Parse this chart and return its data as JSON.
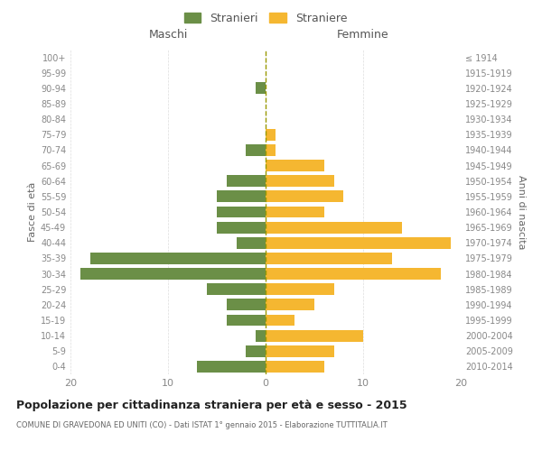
{
  "age_groups": [
    "0-4",
    "5-9",
    "10-14",
    "15-19",
    "20-24",
    "25-29",
    "30-34",
    "35-39",
    "40-44",
    "45-49",
    "50-54",
    "55-59",
    "60-64",
    "65-69",
    "70-74",
    "75-79",
    "80-84",
    "85-89",
    "90-94",
    "95-99",
    "100+"
  ],
  "birth_years": [
    "2010-2014",
    "2005-2009",
    "2000-2004",
    "1995-1999",
    "1990-1994",
    "1985-1989",
    "1980-1984",
    "1975-1979",
    "1970-1974",
    "1965-1969",
    "1960-1964",
    "1955-1959",
    "1950-1954",
    "1945-1949",
    "1940-1944",
    "1935-1939",
    "1930-1934",
    "1925-1929",
    "1920-1924",
    "1915-1919",
    "≤ 1914"
  ],
  "maschi": [
    7,
    2,
    1,
    4,
    4,
    6,
    19,
    18,
    3,
    5,
    5,
    5,
    4,
    0,
    2,
    0,
    0,
    0,
    1,
    0,
    0
  ],
  "femmine": [
    6,
    7,
    10,
    3,
    5,
    7,
    18,
    13,
    19,
    14,
    6,
    8,
    7,
    6,
    1,
    1,
    0,
    0,
    0,
    0,
    0
  ],
  "maschi_color": "#6b8f47",
  "femmine_color": "#f5b731",
  "dashed_line_color": "#999900",
  "grid_color": "#dddddd",
  "title": "Popolazione per cittadinanza straniera per età e sesso - 2015",
  "subtitle": "COMUNE DI GRAVEDONA ED UNITI (CO) - Dati ISTAT 1° gennaio 2015 - Elaborazione TUTTITALIA.IT",
  "ylabel_left": "Fasce di età",
  "ylabel_right": "Anni di nascita",
  "xlabel_maschi": "Maschi",
  "xlabel_femmine": "Femmine",
  "legend_maschi": "Stranieri",
  "legend_femmine": "Straniere",
  "xlim": 20,
  "background_color": "#ffffff"
}
